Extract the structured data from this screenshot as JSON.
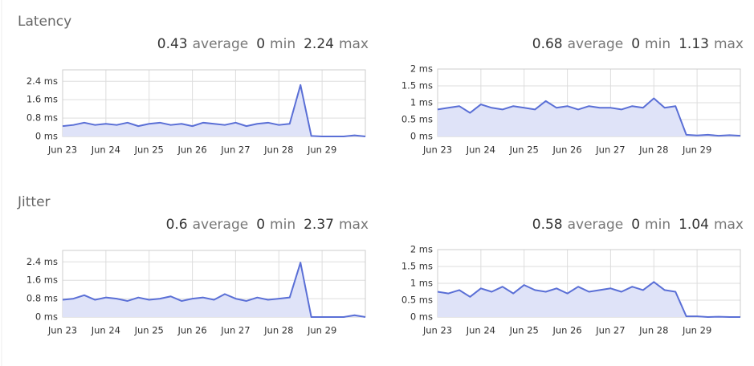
{
  "headings": [
    "Latency",
    "Jitter"
  ],
  "chart_data": [
    {
      "type": "area",
      "color": "#5a6fd6",
      "fill": "#dfe3f8",
      "grid": true,
      "summary": [
        {
          "value": 0.43,
          "label": "average"
        },
        {
          "value": 0,
          "label": "min"
        },
        {
          "value": 2.24,
          "label": "max"
        }
      ],
      "xlim": [
        23,
        30
      ],
      "ylim": [
        0,
        2.9
      ],
      "xticks": [
        {
          "value": 23,
          "label": "Jun 23"
        },
        {
          "value": 24,
          "label": "Jun 24"
        },
        {
          "value": 25,
          "label": "Jun 25"
        },
        {
          "value": 26,
          "label": "Jun 26"
        },
        {
          "value": 27,
          "label": "Jun 27"
        },
        {
          "value": 28,
          "label": "Jun 28"
        },
        {
          "value": 29,
          "label": "Jun 29"
        }
      ],
      "yticks": [
        {
          "value": 0,
          "label": "0 ms"
        },
        {
          "value": 0.8,
          "label": "0.8 ms"
        },
        {
          "value": 1.6,
          "label": "1.6 ms"
        },
        {
          "value": 2.4,
          "label": "2.4 ms"
        }
      ],
      "x": [
        23,
        23.25,
        23.5,
        23.75,
        24,
        24.25,
        24.5,
        24.75,
        25,
        25.25,
        25.5,
        25.75,
        26,
        26.25,
        26.5,
        26.75,
        27,
        27.25,
        27.5,
        27.75,
        28,
        28.25,
        28.5,
        28.75,
        29,
        29.25,
        29.5,
        29.75,
        30
      ],
      "values": [
        0.45,
        0.5,
        0.6,
        0.5,
        0.55,
        0.5,
        0.6,
        0.45,
        0.55,
        0.6,
        0.5,
        0.55,
        0.45,
        0.6,
        0.55,
        0.5,
        0.6,
        0.45,
        0.55,
        0.6,
        0.5,
        0.55,
        2.24,
        0.02,
        0,
        0,
        0,
        0.05,
        0
      ]
    },
    {
      "type": "area",
      "color": "#5a6fd6",
      "fill": "#dfe3f8",
      "grid": true,
      "summary": [
        {
          "value": 0.68,
          "label": "average"
        },
        {
          "value": 0,
          "label": "min"
        },
        {
          "value": 1.13,
          "label": "max"
        }
      ],
      "xlim": [
        23,
        30
      ],
      "ylim": [
        0,
        2
      ],
      "xticks": [
        {
          "value": 23,
          "label": "Jun 23"
        },
        {
          "value": 24,
          "label": "Jun 24"
        },
        {
          "value": 25,
          "label": "Jun 25"
        },
        {
          "value": 26,
          "label": "Jun 26"
        },
        {
          "value": 27,
          "label": "Jun 27"
        },
        {
          "value": 28,
          "label": "Jun 28"
        },
        {
          "value": 29,
          "label": "Jun 29"
        }
      ],
      "yticks": [
        {
          "value": 0,
          "label": "0 ms"
        },
        {
          "value": 0.5,
          "label": "0.5 ms"
        },
        {
          "value": 1,
          "label": "1 ms"
        },
        {
          "value": 1.5,
          "label": "1.5 ms"
        },
        {
          "value": 2,
          "label": "2 ms"
        }
      ],
      "x": [
        23,
        23.25,
        23.5,
        23.75,
        24,
        24.25,
        24.5,
        24.75,
        25,
        25.25,
        25.5,
        25.75,
        26,
        26.25,
        26.5,
        26.75,
        27,
        27.25,
        27.5,
        27.75,
        28,
        28.25,
        28.5,
        28.75,
        29,
        29.25,
        29.5,
        29.75,
        30
      ],
      "values": [
        0.8,
        0.85,
        0.9,
        0.7,
        0.95,
        0.85,
        0.8,
        0.9,
        0.85,
        0.8,
        1.05,
        0.85,
        0.9,
        0.8,
        0.9,
        0.85,
        0.85,
        0.8,
        0.9,
        0.85,
        1.13,
        0.85,
        0.9,
        0.05,
        0.03,
        0.05,
        0.02,
        0.04,
        0.02
      ]
    },
    {
      "type": "area",
      "color": "#5a6fd6",
      "fill": "#dfe3f8",
      "grid": true,
      "summary": [
        {
          "value": 0.6,
          "label": "average"
        },
        {
          "value": 0,
          "label": "min"
        },
        {
          "value": 2.37,
          "label": "max"
        }
      ],
      "xlim": [
        23,
        30
      ],
      "ylim": [
        0,
        2.9
      ],
      "xticks": [
        {
          "value": 23,
          "label": "Jun 23"
        },
        {
          "value": 24,
          "label": "Jun 24"
        },
        {
          "value": 25,
          "label": "Jun 25"
        },
        {
          "value": 26,
          "label": "Jun 26"
        },
        {
          "value": 27,
          "label": "Jun 27"
        },
        {
          "value": 28,
          "label": "Jun 28"
        },
        {
          "value": 29,
          "label": "Jun 29"
        }
      ],
      "yticks": [
        {
          "value": 0,
          "label": "0 ms"
        },
        {
          "value": 0.8,
          "label": "0.8 ms"
        },
        {
          "value": 1.6,
          "label": "1.6 ms"
        },
        {
          "value": 2.4,
          "label": "2.4 ms"
        }
      ],
      "x": [
        23,
        23.25,
        23.5,
        23.75,
        24,
        24.25,
        24.5,
        24.75,
        25,
        25.25,
        25.5,
        25.75,
        26,
        26.25,
        26.5,
        26.75,
        27,
        27.25,
        27.5,
        27.75,
        28,
        28.25,
        28.5,
        28.75,
        29,
        29.25,
        29.5,
        29.75,
        30
      ],
      "values": [
        0.75,
        0.8,
        0.95,
        0.75,
        0.85,
        0.8,
        0.7,
        0.85,
        0.75,
        0.8,
        0.9,
        0.7,
        0.8,
        0.85,
        0.75,
        1.0,
        0.8,
        0.7,
        0.85,
        0.75,
        0.8,
        0.85,
        2.37,
        0,
        0,
        0,
        0,
        0.08,
        0
      ]
    },
    {
      "type": "area",
      "color": "#5a6fd6",
      "fill": "#dfe3f8",
      "grid": true,
      "summary": [
        {
          "value": 0.58,
          "label": "average"
        },
        {
          "value": 0,
          "label": "min"
        },
        {
          "value": 1.04,
          "label": "max"
        }
      ],
      "xlim": [
        23,
        30
      ],
      "ylim": [
        0,
        2
      ],
      "xticks": [
        {
          "value": 23,
          "label": "Jun 23"
        },
        {
          "value": 24,
          "label": "Jun 24"
        },
        {
          "value": 25,
          "label": "Jun 25"
        },
        {
          "value": 26,
          "label": "Jun 26"
        },
        {
          "value": 27,
          "label": "Jun 27"
        },
        {
          "value": 28,
          "label": "Jun 28"
        },
        {
          "value": 29,
          "label": "Jun 29"
        }
      ],
      "yticks": [
        {
          "value": 0,
          "label": "0 ms"
        },
        {
          "value": 0.5,
          "label": "0.5 ms"
        },
        {
          "value": 1,
          "label": "1 ms"
        },
        {
          "value": 1.5,
          "label": "1.5 ms"
        },
        {
          "value": 2,
          "label": "2 ms"
        }
      ],
      "x": [
        23,
        23.25,
        23.5,
        23.75,
        24,
        24.25,
        24.5,
        24.75,
        25,
        25.25,
        25.5,
        25.75,
        26,
        26.25,
        26.5,
        26.75,
        27,
        27.25,
        27.5,
        27.75,
        28,
        28.25,
        28.5,
        28.75,
        29,
        29.25,
        29.5,
        29.75,
        30
      ],
      "values": [
        0.75,
        0.7,
        0.8,
        0.6,
        0.85,
        0.75,
        0.9,
        0.7,
        0.95,
        0.8,
        0.75,
        0.85,
        0.7,
        0.9,
        0.75,
        0.8,
        0.85,
        0.75,
        0.9,
        0.8,
        1.04,
        0.8,
        0.75,
        0.02,
        0.02,
        0,
        0.01,
        0,
        0
      ]
    }
  ]
}
